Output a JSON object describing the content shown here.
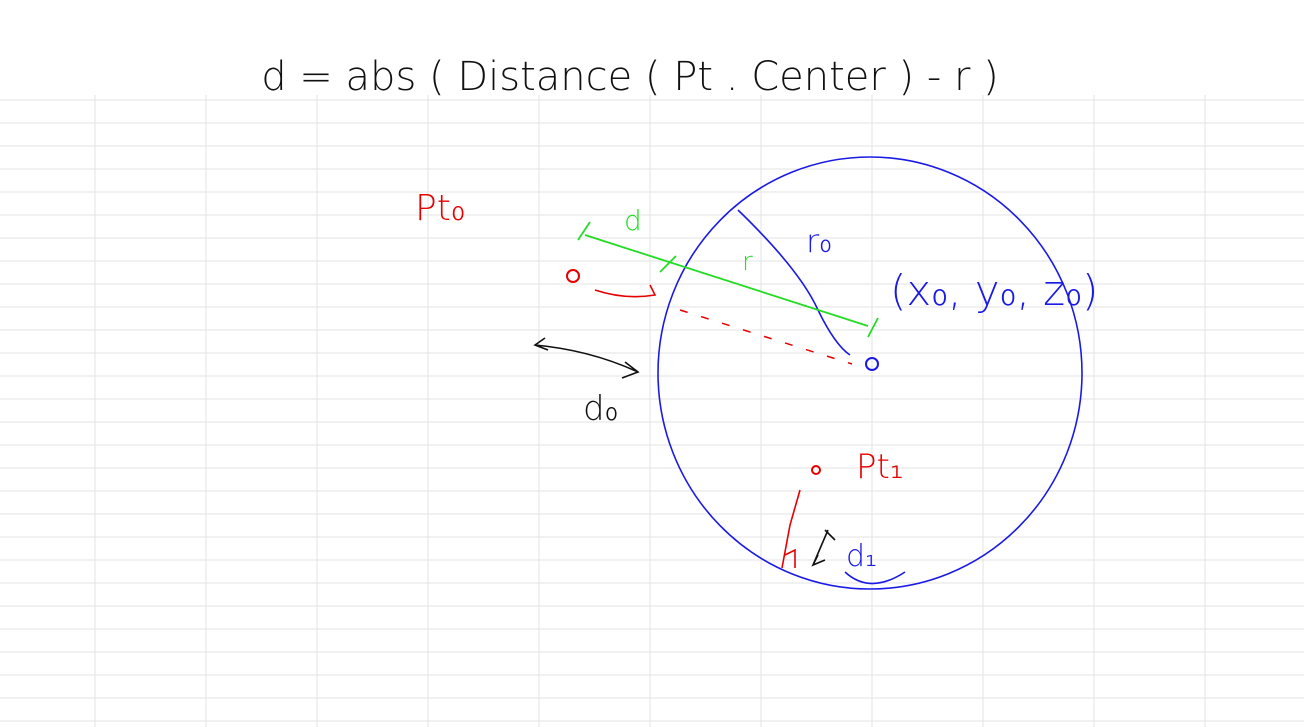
{
  "formula": "d = abs ( Distance ( Pt . Center ) - r )",
  "labels": {
    "pt0": "Pt₀",
    "d": "d",
    "r": "r",
    "r0": "r₀",
    "center": "(x₀, y₀, z₀)",
    "d0": "d₀",
    "pt1": "Pt₁",
    "d1": "d₁"
  }
}
